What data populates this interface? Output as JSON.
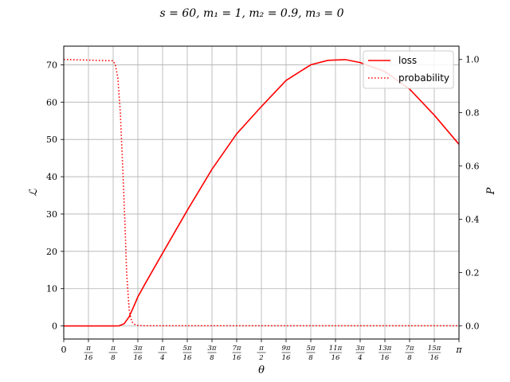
{
  "chart_data": {
    "type": "line",
    "title": "s = 60, m₁ = 1, m₂ = 0.9, m₃ = 0",
    "xlabel": "θ",
    "ylabel_left": "ℒ",
    "ylabel_right": "P",
    "xlim": [
      0,
      3.14159
    ],
    "ylim_left": [
      -3.5,
      75
    ],
    "ylim_right": [
      -0.05,
      1.05
    ],
    "grid": true,
    "legend_position": "top-right",
    "x_ticks": [
      {
        "num": "0",
        "den": "",
        "value": 0
      },
      {
        "num": "π",
        "den": "16",
        "value": 0.19635
      },
      {
        "num": "π",
        "den": "8",
        "value": 0.3927
      },
      {
        "num": "3π",
        "den": "16",
        "value": 0.58905
      },
      {
        "num": "π",
        "den": "4",
        "value": 0.7854
      },
      {
        "num": "5π",
        "den": "16",
        "value": 0.98175
      },
      {
        "num": "3π",
        "den": "8",
        "value": 1.1781
      },
      {
        "num": "7π",
        "den": "16",
        "value": 1.37445
      },
      {
        "num": "π",
        "den": "2",
        "value": 1.5708
      },
      {
        "num": "9π",
        "den": "16",
        "value": 1.76715
      },
      {
        "num": "5π",
        "den": "8",
        "value": 1.9635
      },
      {
        "num": "11π",
        "den": "16",
        "value": 2.15985
      },
      {
        "num": "3π",
        "den": "4",
        "value": 2.3562
      },
      {
        "num": "13π",
        "den": "16",
        "value": 2.55255
      },
      {
        "num": "7π",
        "den": "8",
        "value": 2.7489
      },
      {
        "num": "15π",
        "den": "16",
        "value": 2.94525
      },
      {
        "num": "π",
        "den": "",
        "value": 3.14159
      }
    ],
    "y_ticks_left": [
      "0",
      "10",
      "20",
      "30",
      "40",
      "50",
      "60",
      "70"
    ],
    "y_ticks_right": [
      "0.0",
      "0.2",
      "0.4",
      "0.6",
      "0.8",
      "1.0"
    ],
    "series": [
      {
        "name": "loss",
        "axis": "left",
        "color": "#ff0000",
        "style": "solid",
        "x": [
          0,
          0.3927,
          0.44,
          0.48,
          0.52,
          0.56,
          0.589,
          0.65,
          0.7854,
          0.98175,
          1.1781,
          1.37445,
          1.5708,
          1.76715,
          1.9635,
          2.1,
          2.2383,
          2.3562,
          2.55255,
          2.7489,
          2.94525,
          3.14159
        ],
        "y": [
          0,
          0,
          0.05,
          0.6,
          2.5,
          5.5,
          7.8,
          11.5,
          19.5,
          31,
          42,
          51.5,
          58.8,
          65.8,
          70,
          71.2,
          71.4,
          70.6,
          68.2,
          63.5,
          56.5,
          48.7
        ]
      },
      {
        "name": "probability",
        "axis": "right",
        "color": "#ff0000",
        "style": "dotted",
        "x": [
          0,
          0.3927,
          0.41,
          0.43,
          0.45,
          0.47,
          0.485,
          0.5,
          0.52,
          0.54,
          0.57,
          0.62,
          3.14159
        ],
        "y": [
          1.0,
          0.995,
          0.98,
          0.93,
          0.8,
          0.58,
          0.4,
          0.2,
          0.06,
          0.015,
          0.003,
          0.0,
          0.0
        ]
      }
    ]
  }
}
